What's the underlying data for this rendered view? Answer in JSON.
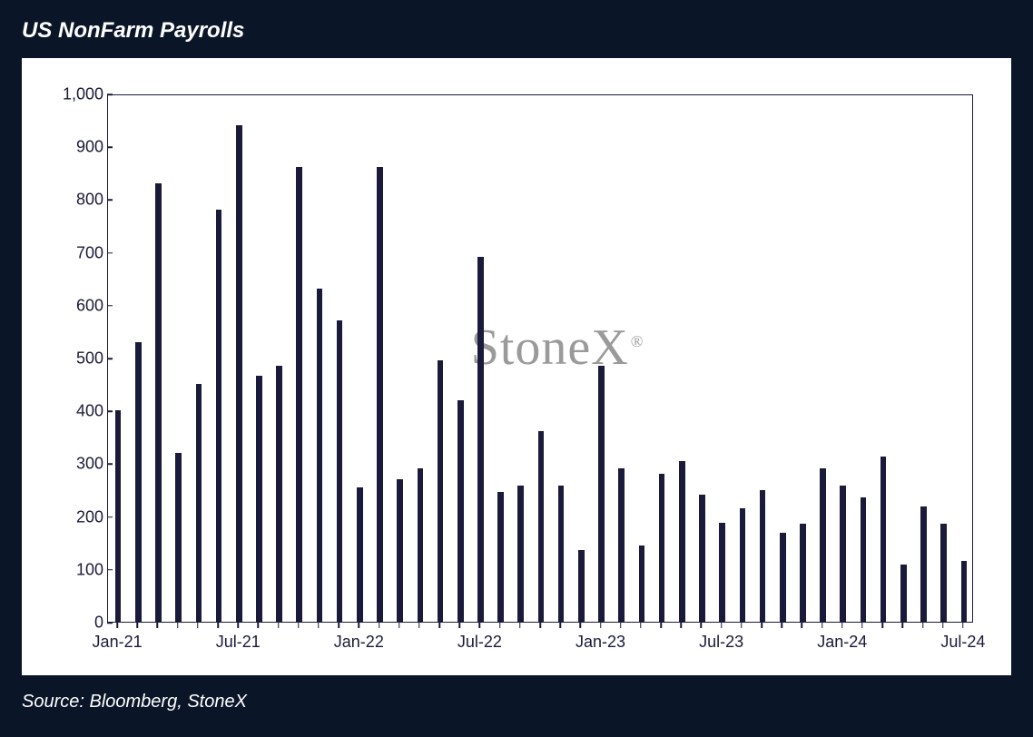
{
  "title": "US NonFarm Payrolls",
  "source": "Source: Bloomberg, StoneX",
  "watermark": "StoneX",
  "chart": {
    "type": "bar",
    "background_color": "#ffffff",
    "page_background": "#0a1628",
    "bar_color": "#1a1a3a",
    "axis_color": "#1a1a3a",
    "text_color": "#1a1a3a",
    "watermark_color": "#9a9a9a",
    "title_color": "#ffffff",
    "ylim": [
      0,
      1000
    ],
    "yticks": [
      0,
      100,
      200,
      300,
      400,
      500,
      600,
      700,
      800,
      900,
      1000
    ],
    "ytick_labels": [
      "0",
      "100",
      "200",
      "300",
      "400",
      "500",
      "600",
      "700",
      "800",
      "900",
      "1,000"
    ],
    "xtick_labels": [
      "Jan-21",
      "Jul-21",
      "Jan-22",
      "Jul-22",
      "Jan-23",
      "Jul-23",
      "Jan-24",
      "Jul-24"
    ],
    "xtick_positions": [
      0,
      6,
      12,
      18,
      24,
      30,
      36,
      42
    ],
    "n_bars": 43,
    "bar_width_ratio": 0.3,
    "label_fontsize": 18,
    "title_fontsize": 24,
    "watermark_fontsize": 56,
    "values": [
      400,
      530,
      830,
      320,
      450,
      780,
      940,
      465,
      485,
      860,
      630,
      570,
      255,
      860,
      270,
      290,
      495,
      420,
      690,
      245,
      258,
      360,
      258,
      135,
      485,
      290,
      145,
      280,
      305,
      240,
      188,
      215,
      250,
      168,
      185,
      290,
      258,
      235,
      312,
      108,
      218,
      185,
      115
    ]
  }
}
